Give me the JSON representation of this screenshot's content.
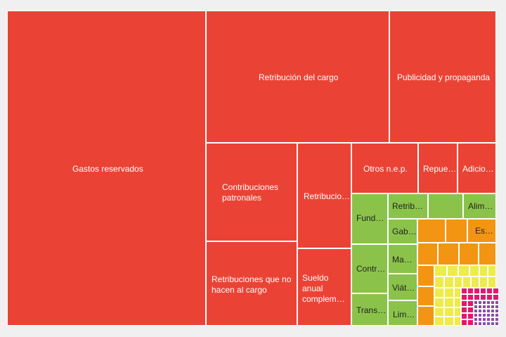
{
  "colors": {
    "red": "#ea4335",
    "green": "#8bc34a",
    "orange": "#f39512",
    "yellow": "#eeeb4a",
    "pink": "#e2176f",
    "purple": "#8e4ba6",
    "lavender": "#b9a8d6"
  },
  "chart_data": {
    "type": "treemap",
    "title": "",
    "items": [
      {
        "id": "gastos-reservados",
        "label": "Gastos reservados",
        "group": "red"
      },
      {
        "id": "retribucion-del-cargo",
        "label": "Retribución del cargo",
        "group": "red"
      },
      {
        "id": "publicidad-propaganda",
        "label": "Publicidad y propaganda",
        "group": "red"
      },
      {
        "id": "contribuciones-patronales",
        "label": "Contribuciones patronales",
        "group": "red"
      },
      {
        "id": "retribucio",
        "label": "Retribucio…",
        "group": "red"
      },
      {
        "id": "otros-nep",
        "label": "Otros n.e.p.",
        "group": "red"
      },
      {
        "id": "repue",
        "label": "Repue…",
        "group": "red"
      },
      {
        "id": "adicio",
        "label": "Adicio…",
        "group": "red"
      },
      {
        "id": "retribuciones-no-cargo",
        "label": "Retribuciones que no hacen al cargo",
        "group": "red"
      },
      {
        "id": "sueldo-anual",
        "label": "Sueldo anual compleme…",
        "group": "red"
      },
      {
        "id": "funda",
        "label": "Funda…",
        "group": "green"
      },
      {
        "id": "contr",
        "label": "Contr…",
        "group": "green"
      },
      {
        "id": "trans",
        "label": "Trans…",
        "group": "green"
      },
      {
        "id": "retribu",
        "label": "Retribu…",
        "group": "green"
      },
      {
        "id": "gabi",
        "label": "Gabi…",
        "group": "green"
      },
      {
        "id": "man",
        "label": "Man…",
        "group": "green"
      },
      {
        "id": "viati",
        "label": "Viáti…",
        "group": "green"
      },
      {
        "id": "lim",
        "label": "Lim…",
        "group": "green"
      },
      {
        "id": "green-unlabeled",
        "label": "",
        "group": "green"
      },
      {
        "id": "alim",
        "label": "Alim…",
        "group": "green"
      },
      {
        "id": "est",
        "label": "Est…",
        "group": "orange"
      }
    ]
  }
}
